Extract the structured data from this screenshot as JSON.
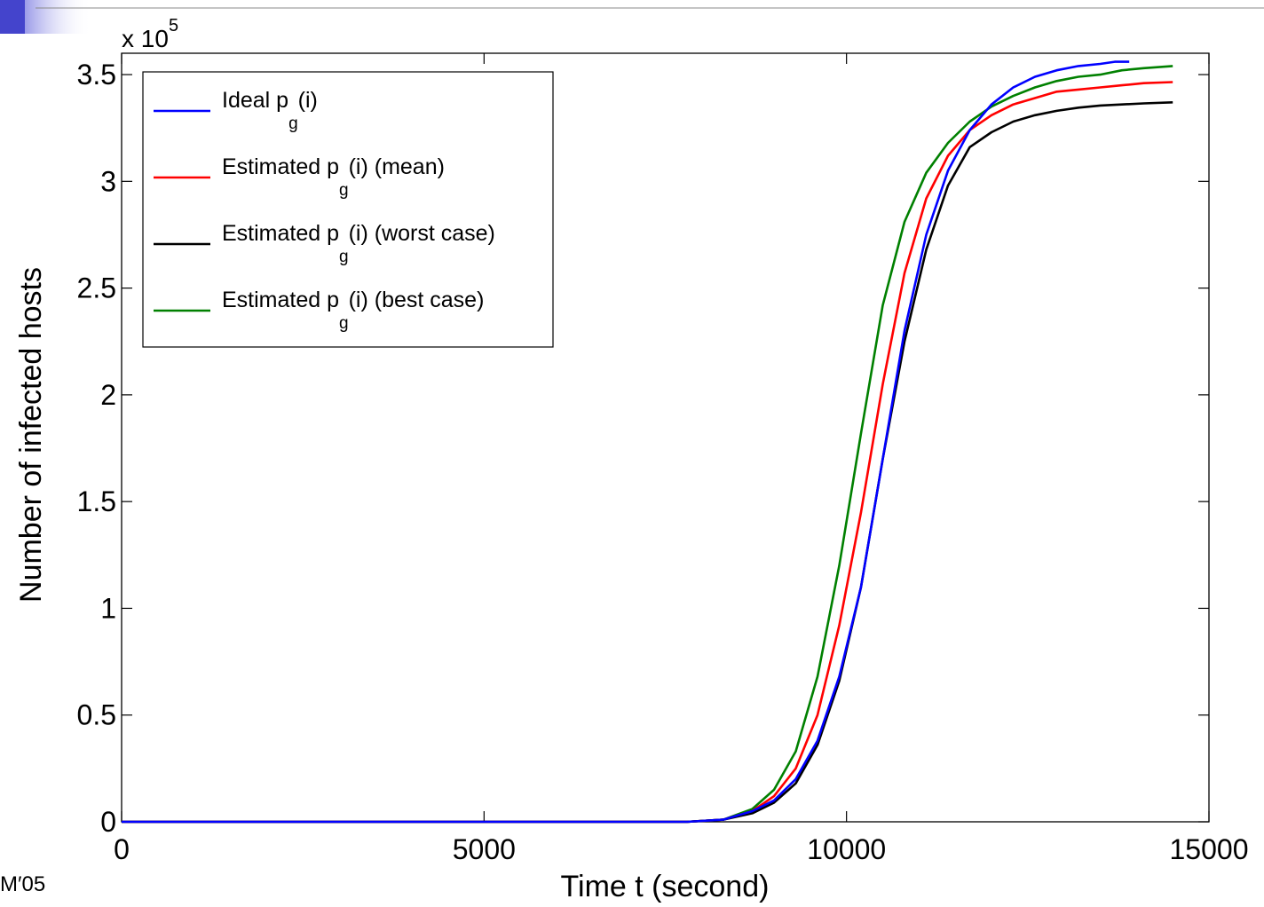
{
  "footer": {
    "text": "M′05"
  },
  "chart_data": {
    "type": "line",
    "title": "",
    "xlabel": "Time t (second)",
    "ylabel": "Number of infected hosts",
    "y_multiplier_label": {
      "base": "x 10",
      "exponent": "5"
    },
    "xlim": [
      0,
      15000
    ],
    "ylim": [
      0,
      3.6
    ],
    "y_scale_note": "values in units of 10^5 hosts",
    "x_ticks": [
      0,
      5000,
      10000,
      15000
    ],
    "x_tick_labels": [
      "0",
      "5000",
      "10000",
      "15000"
    ],
    "y_ticks": [
      0,
      0.5,
      1,
      1.5,
      2,
      2.5,
      3,
      3.5
    ],
    "y_tick_labels": [
      "0",
      "0.5",
      "1",
      "1.5",
      "2",
      "2.5",
      "3",
      "3.5"
    ],
    "grid": false,
    "legend_position": "top-left",
    "series": [
      {
        "legend": {
          "main": "Ideal p",
          "sub": "g",
          "rest": "(i)"
        },
        "color": "#0000ff",
        "x": [
          0,
          7800,
          8300,
          8700,
          9000,
          9300,
          9600,
          9900,
          10200,
          10500,
          10800,
          11100,
          11400,
          11700,
          12000,
          12300,
          12600,
          12900,
          13200,
          13500,
          13700,
          13900
        ],
        "y": [
          0,
          0,
          0.01,
          0.05,
          0.1,
          0.2,
          0.38,
          0.68,
          1.1,
          1.7,
          2.3,
          2.75,
          3.05,
          3.24,
          3.36,
          3.44,
          3.49,
          3.52,
          3.54,
          3.55,
          3.56,
          3.56
        ]
      },
      {
        "legend": {
          "main": "Estimated p",
          "sub": "g",
          "rest": "(i) (mean)"
        },
        "color": "#ff0000",
        "x": [
          0,
          7800,
          8300,
          8700,
          9000,
          9300,
          9600,
          9900,
          10200,
          10500,
          10800,
          11100,
          11400,
          11700,
          12000,
          12300,
          12600,
          12900,
          13200,
          13500,
          13800,
          14100,
          14500
        ],
        "y": [
          0,
          0,
          0.01,
          0.05,
          0.12,
          0.25,
          0.5,
          0.92,
          1.45,
          2.05,
          2.57,
          2.92,
          3.12,
          3.24,
          3.31,
          3.36,
          3.39,
          3.42,
          3.43,
          3.44,
          3.45,
          3.46,
          3.465
        ]
      },
      {
        "legend": {
          "main": "Estimated p",
          "sub": "g",
          "rest": "(i) (worst case)"
        },
        "color": "#000000",
        "x": [
          0,
          7800,
          8300,
          8700,
          9000,
          9300,
          9600,
          9900,
          10200,
          10500,
          10800,
          11100,
          11400,
          11700,
          12000,
          12300,
          12600,
          12900,
          13200,
          13500,
          13800,
          14100,
          14500
        ],
        "y": [
          0,
          0,
          0.01,
          0.04,
          0.09,
          0.18,
          0.36,
          0.66,
          1.1,
          1.7,
          2.25,
          2.68,
          2.98,
          3.16,
          3.23,
          3.28,
          3.31,
          3.33,
          3.345,
          3.355,
          3.36,
          3.365,
          3.37
        ]
      },
      {
        "legend": {
          "main": "Estimated p",
          "sub": "g",
          "rest": "(i) (best case)"
        },
        "color": "#008000",
        "x": [
          0,
          7800,
          8300,
          8700,
          9000,
          9300,
          9600,
          9900,
          10200,
          10500,
          10800,
          11100,
          11400,
          11700,
          12000,
          12300,
          12600,
          12900,
          13200,
          13500,
          13800,
          14100,
          14500
        ],
        "y": [
          0,
          0,
          0.01,
          0.06,
          0.15,
          0.33,
          0.68,
          1.2,
          1.82,
          2.42,
          2.81,
          3.04,
          3.18,
          3.28,
          3.35,
          3.4,
          3.44,
          3.47,
          3.49,
          3.5,
          3.52,
          3.53,
          3.54
        ]
      }
    ]
  }
}
